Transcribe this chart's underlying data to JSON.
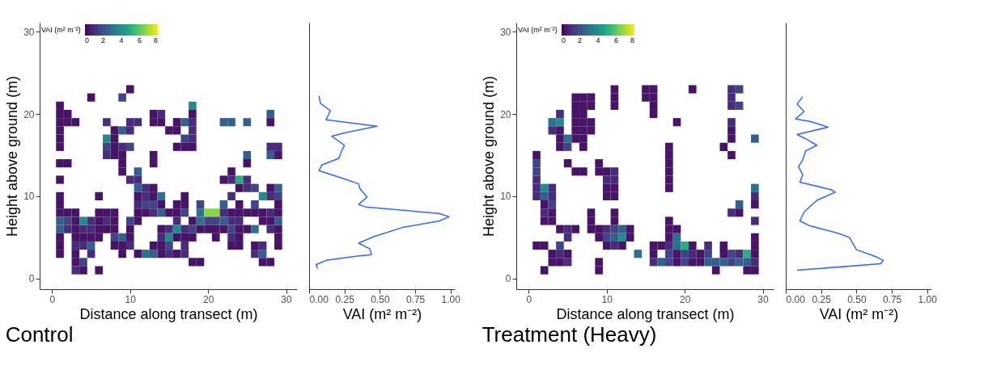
{
  "chart_data": [
    {
      "type": "heatmap",
      "xlabel": "Distance along transect (m)",
      "ylabel": "Height above ground (m)",
      "clabel": "VAI (m² m⁻²)",
      "clim": [
        0,
        8
      ],
      "cticks": [
        0,
        2,
        4,
        6,
        8
      ],
      "annotations": [
        "Control"
      ],
      "xlim": [
        -1.6,
        31.4
      ],
      "xticks": [
        0,
        10,
        20,
        30
      ],
      "ylim": [
        -1.3,
        31.1
      ],
      "yticks": [
        0,
        10,
        20,
        30
      ],
      "x": [
        1,
        2,
        3,
        4,
        5,
        6,
        7,
        8,
        9,
        10,
        11,
        12,
        13,
        14,
        15,
        16,
        17,
        18,
        19,
        20,
        21,
        22,
        23,
        24,
        25,
        26,
        27,
        28,
        29
      ],
      "y": [
        23,
        22,
        21,
        20,
        19,
        18,
        17,
        16,
        15,
        14,
        13,
        12,
        11,
        10,
        9,
        8,
        7,
        6,
        5,
        4,
        3,
        2,
        1
      ],
      "cells": [
        [
          null,
          null,
          null,
          null,
          null,
          null,
          null,
          null,
          null,
          0.4,
          null,
          null,
          null,
          null,
          null,
          null,
          null,
          null,
          null,
          null,
          null,
          null,
          null,
          null,
          null,
          null,
          null,
          null,
          null
        ],
        [
          null,
          null,
          null,
          null,
          0.4,
          null,
          null,
          null,
          1.6,
          null,
          null,
          null,
          null,
          null,
          null,
          null,
          null,
          null,
          null,
          null,
          null,
          null,
          null,
          null,
          null,
          null,
          null,
          null,
          null
        ],
        [
          0.4,
          null,
          null,
          null,
          null,
          null,
          null,
          null,
          null,
          null,
          null,
          null,
          null,
          null,
          null,
          null,
          null,
          3.8,
          null,
          null,
          null,
          null,
          null,
          null,
          null,
          null,
          null,
          null,
          null
        ],
        [
          0.4,
          0.4,
          null,
          null,
          null,
          null,
          null,
          null,
          null,
          null,
          null,
          null,
          0.4,
          1,
          null,
          null,
          null,
          0.4,
          null,
          null,
          null,
          null,
          null,
          null,
          null,
          null,
          null,
          2.4,
          null
        ],
        [
          0.4,
          0.4,
          0.4,
          null,
          null,
          null,
          1,
          null,
          null,
          1,
          1,
          null,
          0.4,
          0.4,
          null,
          0.4,
          2.4,
          1,
          null,
          null,
          null,
          2.4,
          2.4,
          null,
          2.4,
          null,
          null,
          0.4,
          null
        ],
        [
          0.4,
          null,
          null,
          null,
          null,
          null,
          null,
          0.4,
          2.4,
          1,
          null,
          null,
          null,
          null,
          0.4,
          0.4,
          null,
          1,
          null,
          null,
          null,
          null,
          null,
          null,
          null,
          null,
          null,
          null,
          null
        ],
        [
          0.4,
          null,
          null,
          null,
          null,
          null,
          3.8,
          0.4,
          null,
          null,
          null,
          null,
          null,
          null,
          null,
          null,
          1.6,
          1,
          null,
          null,
          null,
          null,
          null,
          null,
          null,
          null,
          null,
          null,
          null
        ],
        [
          0.4,
          null,
          null,
          null,
          null,
          null,
          1.6,
          0.4,
          1,
          1.6,
          null,
          null,
          null,
          null,
          null,
          0.4,
          0.4,
          0.4,
          null,
          null,
          null,
          null,
          null,
          null,
          null,
          null,
          null,
          1,
          1
        ],
        [
          null,
          null,
          null,
          null,
          null,
          null,
          1,
          0.4,
          0.4,
          null,
          null,
          null,
          0.4,
          null,
          null,
          null,
          null,
          null,
          null,
          null,
          null,
          null,
          null,
          null,
          2.4,
          null,
          null,
          2.4,
          0.4
        ],
        [
          0.4,
          0.4,
          null,
          null,
          null,
          null,
          null,
          null,
          0.4,
          null,
          null,
          null,
          0.4,
          null,
          null,
          null,
          null,
          null,
          null,
          null,
          null,
          null,
          null,
          null,
          0.4,
          null,
          null,
          null,
          null
        ],
        [
          null,
          null,
          null,
          null,
          null,
          null,
          null,
          null,
          0.4,
          null,
          2.4,
          null,
          null,
          null,
          null,
          null,
          null,
          null,
          null,
          null,
          null,
          null,
          0.4,
          null,
          null,
          null,
          null,
          null,
          null
        ],
        [
          0.4,
          null,
          null,
          null,
          null,
          null,
          null,
          null,
          null,
          1,
          1,
          null,
          null,
          null,
          null,
          null,
          null,
          null,
          null,
          null,
          null,
          0.4,
          1,
          5,
          1,
          null,
          null,
          null,
          null
        ],
        [
          null,
          null,
          null,
          null,
          null,
          null,
          null,
          null,
          null,
          null,
          2.4,
          1,
          0.4,
          null,
          null,
          null,
          null,
          null,
          null,
          null,
          null,
          null,
          null,
          0.4,
          1,
          1.6,
          null,
          0.4,
          2.4
        ],
        [
          0.4,
          null,
          null,
          null,
          null,
          0.4,
          null,
          null,
          null,
          null,
          0.4,
          1,
          0.4,
          3,
          null,
          null,
          0.4,
          null,
          null,
          null,
          null,
          null,
          1,
          null,
          null,
          null,
          3.8,
          1,
          1.6
        ],
        [
          0.4,
          null,
          null,
          null,
          null,
          null,
          null,
          null,
          null,
          null,
          1,
          1.6,
          1.6,
          0.4,
          null,
          0.4,
          0.4,
          null,
          1.6,
          null,
          null,
          2.4,
          null,
          0.4,
          null,
          1.6,
          null,
          null,
          0.4
        ],
        [
          0.4,
          0.4,
          0.4,
          null,
          null,
          0.4,
          0.4,
          0.4,
          null,
          null,
          0.4,
          0.4,
          1,
          2.4,
          0.4,
          0.4,
          1.6,
          null,
          3,
          6.6,
          6.6,
          1,
          0.4,
          0.4,
          0.4,
          0.4,
          0.4,
          1,
          0.4
        ],
        [
          2.4,
          1.6,
          0.4,
          3.8,
          1,
          0.4,
          1,
          0.4,
          null,
          1.6,
          0.4,
          null,
          null,
          null,
          null,
          1,
          null,
          0.4,
          3,
          1.6,
          1.6,
          2.4,
          1,
          1,
          null,
          null,
          0.4,
          0.4,
          2.4
        ],
        [
          2.4,
          1,
          0.4,
          1,
          1,
          0.4,
          0.4,
          0.4,
          null,
          0.4,
          null,
          null,
          null,
          0.4,
          1,
          3.8,
          1,
          1.6,
          0.4,
          0.4,
          0.4,
          0.4,
          1.6,
          0.4,
          0.4,
          3,
          null,
          1,
          0.4
        ],
        [
          0.4,
          null,
          0.4,
          0.4,
          0.4,
          0.4,
          null,
          1.6,
          2.4,
          0.4,
          null,
          null,
          null,
          1,
          3.8,
          0.4,
          0.4,
          0.4,
          null,
          null,
          0.4,
          null,
          1,
          0.4,
          null,
          null,
          null,
          null,
          0.4
        ],
        [
          0.4,
          null,
          1,
          1,
          2.4,
          null,
          null,
          0.4,
          0.4,
          1,
          null,
          null,
          0.4,
          0.4,
          1.6,
          null,
          1,
          null,
          null,
          null,
          null,
          null,
          0.4,
          0.4,
          null,
          0.4,
          1,
          null,
          0.4
        ],
        [
          0.4,
          null,
          0.4,
          null,
          1,
          null,
          null,
          null,
          0.4,
          null,
          0.4,
          3,
          2.4,
          0.4,
          1,
          0.4,
          1,
          null,
          null,
          null,
          null,
          null,
          null,
          null,
          null,
          1,
          2.4,
          null,
          null
        ],
        [
          null,
          null,
          0.4,
          1.6,
          null,
          null,
          null,
          null,
          null,
          null,
          null,
          null,
          null,
          null,
          null,
          null,
          null,
          0.4,
          0.4,
          null,
          null,
          null,
          null,
          null,
          null,
          null,
          0.4,
          0.4,
          null
        ],
        [
          null,
          null,
          1,
          0.4,
          null,
          0.4,
          null,
          null,
          null,
          null,
          null,
          null,
          null,
          null,
          null,
          null,
          null,
          null,
          null,
          null,
          null,
          null,
          null,
          null,
          null,
          null,
          null,
          null,
          null
        ]
      ]
    },
    {
      "type": "line",
      "xlabel": "VAI (m² m⁻²)",
      "color": "#3366ff",
      "tick_labels": "x",
      "xlim": [
        0,
        1.03
      ],
      "xticks": [
        {
          "value": 0,
          "label": "0.00"
        },
        {
          "value": 0.25,
          "label": "0.25"
        },
        {
          "value": 0.5,
          "label": "0.50"
        },
        {
          "value": 0.75,
          "label": "0.75"
        },
        {
          "value": 1,
          "label": "1.00"
        }
      ],
      "ylim": [
        -1.3,
        31.1
      ],
      "x": [
        0.06,
        0.05,
        0.12,
        0.33,
        0.44,
        0.43,
        0.35,
        0.46,
        0.66,
        0.92,
        0.99,
        0.92,
        0.4,
        0.35,
        0.41,
        0.36,
        0.35,
        0.25,
        0.07,
        0.09,
        0.21,
        0.23,
        0.25,
        0.16,
        0.25,
        0.48,
        0.12,
        0.15,
        0.08,
        0.07
      ],
      "values": [
        1.2,
        1.7,
        2.2,
        2.7,
        2.9,
        3.6,
        4.3,
        5.1,
        6.2,
        7.0,
        7.5,
        7.9,
        8.7,
        9.0,
        9.9,
        10.9,
        11.5,
        12.1,
        13.1,
        13.8,
        14.6,
        15.5,
        16.2,
        17.3,
        17.7,
        18.5,
        19.3,
        20.4,
        21.3,
        22.2
      ]
    },
    {
      "type": "heatmap",
      "xlabel": "Distance along transect (m)",
      "ylabel": "Height above ground (m)",
      "clabel": "VAI (m² m⁻²)",
      "clim": [
        0,
        8
      ],
      "cticks": [
        0,
        2,
        4,
        6,
        8
      ],
      "annotations": [
        "Treatment (Heavy)"
      ],
      "xlim": [
        -1.6,
        31.4
      ],
      "xticks": [
        0,
        10,
        20,
        30
      ],
      "ylim": [
        -1.3,
        31.1
      ],
      "yticks": [
        0,
        10,
        20,
        30
      ],
      "x": [
        1,
        2,
        3,
        4,
        5,
        6,
        7,
        8,
        9,
        10,
        11,
        12,
        13,
        14,
        15,
        16,
        17,
        18,
        19,
        20,
        21,
        22,
        23,
        24,
        25,
        26,
        27,
        28,
        29
      ],
      "y": [
        23,
        22,
        21,
        20,
        19,
        18,
        17,
        16,
        15,
        14,
        13,
        12,
        11,
        10,
        9,
        8,
        7,
        6,
        5,
        4,
        3,
        2,
        1
      ],
      "cells": [
        [
          null,
          null,
          null,
          null,
          null,
          null,
          null,
          null,
          null,
          null,
          0.4,
          null,
          null,
          null,
          0.4,
          0.4,
          null,
          null,
          null,
          null,
          0.4,
          null,
          null,
          null,
          null,
          1,
          1.6,
          null,
          null
        ],
        [
          null,
          null,
          null,
          null,
          null,
          0.4,
          0.4,
          0.4,
          null,
          null,
          0.4,
          null,
          null,
          null,
          0.4,
          0.4,
          null,
          null,
          null,
          null,
          null,
          null,
          null,
          null,
          null,
          1,
          null,
          null,
          null
        ],
        [
          null,
          null,
          null,
          null,
          null,
          0.4,
          0.4,
          0.4,
          null,
          null,
          0.4,
          null,
          null,
          null,
          null,
          0.4,
          null,
          null,
          null,
          null,
          null,
          null,
          null,
          null,
          null,
          1,
          1.6,
          null,
          null
        ],
        [
          null,
          null,
          null,
          1,
          null,
          0.4,
          0.4,
          null,
          null,
          null,
          null,
          null,
          null,
          null,
          null,
          0.4,
          null,
          null,
          null,
          null,
          null,
          null,
          null,
          null,
          null,
          null,
          null,
          null,
          null
        ],
        [
          null,
          null,
          3,
          3.8,
          null,
          0.4,
          0.4,
          0.4,
          null,
          null,
          null,
          null,
          null,
          null,
          null,
          null,
          null,
          null,
          0.4,
          null,
          null,
          null,
          null,
          null,
          null,
          1,
          null,
          null,
          null
        ],
        [
          null,
          null,
          1,
          0.4,
          null,
          0.4,
          0.4,
          0.4,
          null,
          null,
          null,
          null,
          null,
          null,
          null,
          null,
          null,
          null,
          null,
          null,
          null,
          null,
          null,
          null,
          null,
          0.4,
          null,
          null,
          null
        ],
        [
          null,
          null,
          null,
          0.4,
          3,
          0.4,
          0.4,
          null,
          null,
          null,
          null,
          null,
          null,
          null,
          null,
          null,
          null,
          null,
          null,
          null,
          null,
          null,
          null,
          null,
          null,
          0.4,
          null,
          null,
          2.4
        ],
        [
          null,
          null,
          null,
          0.4,
          1.6,
          null,
          0.4,
          null,
          null,
          null,
          null,
          null,
          null,
          null,
          null,
          null,
          null,
          0.4,
          null,
          null,
          null,
          null,
          null,
          null,
          0.4,
          null,
          null,
          null,
          null
        ],
        [
          0.4,
          null,
          null,
          null,
          null,
          null,
          null,
          null,
          null,
          null,
          null,
          null,
          null,
          null,
          null,
          null,
          null,
          0.4,
          null,
          null,
          null,
          null,
          null,
          null,
          null,
          0.4,
          null,
          null,
          null
        ],
        [
          1.6,
          null,
          null,
          null,
          0.4,
          null,
          null,
          null,
          0.4,
          null,
          null,
          null,
          null,
          null,
          null,
          null,
          null,
          0.4,
          null,
          null,
          null,
          null,
          null,
          null,
          null,
          null,
          null,
          null,
          null
        ],
        [
          1.6,
          null,
          null,
          null,
          null,
          0.4,
          0.4,
          null,
          0.4,
          0.4,
          1,
          null,
          null,
          null,
          null,
          null,
          null,
          0.4,
          null,
          null,
          null,
          null,
          null,
          null,
          null,
          null,
          null,
          null,
          null
        ],
        [
          1,
          null,
          null,
          null,
          null,
          null,
          null,
          null,
          null,
          1,
          1,
          null,
          null,
          null,
          null,
          null,
          null,
          0.4,
          null,
          null,
          null,
          null,
          null,
          null,
          null,
          null,
          null,
          null,
          null
        ],
        [
          1,
          3.8,
          1,
          null,
          null,
          null,
          null,
          null,
          null,
          0.4,
          0.4,
          null,
          null,
          null,
          null,
          null,
          null,
          0.4,
          null,
          null,
          null,
          null,
          null,
          null,
          null,
          null,
          null,
          null,
          3
        ],
        [
          1,
          2.4,
          1,
          null,
          null,
          null,
          null,
          null,
          null,
          0.4,
          0.4,
          null,
          null,
          null,
          null,
          null,
          null,
          null,
          null,
          null,
          null,
          null,
          null,
          null,
          null,
          null,
          null,
          null,
          1
        ],
        [
          null,
          0.4,
          1.6,
          null,
          null,
          null,
          null,
          null,
          null,
          null,
          null,
          null,
          null,
          null,
          null,
          null,
          null,
          null,
          null,
          null,
          null,
          null,
          null,
          null,
          null,
          null,
          2.4,
          null,
          0.4
        ],
        [
          null,
          1,
          0.4,
          null,
          null,
          null,
          null,
          0.4,
          null,
          null,
          0.4,
          null,
          null,
          null,
          null,
          null,
          null,
          null,
          null,
          null,
          null,
          null,
          null,
          null,
          null,
          1,
          0.4,
          null,
          null
        ],
        [
          null,
          0.4,
          0.4,
          null,
          null,
          null,
          null,
          0.4,
          null,
          null,
          0.4,
          null,
          null,
          null,
          null,
          null,
          null,
          0.4,
          null,
          null,
          null,
          null,
          null,
          null,
          null,
          null,
          null,
          null,
          1
        ],
        [
          null,
          null,
          null,
          0.4,
          1,
          0.4,
          null,
          0.4,
          0.4,
          1,
          1.6,
          2.4,
          0.4,
          null,
          null,
          null,
          null,
          0.4,
          0.4,
          null,
          null,
          null,
          null,
          null,
          null,
          null,
          null,
          null,
          null
        ],
        [
          null,
          null,
          null,
          null,
          1,
          null,
          null,
          null,
          0.4,
          1.6,
          2.4,
          3.8,
          0.4,
          null,
          null,
          null,
          null,
          0.4,
          3,
          null,
          null,
          null,
          null,
          null,
          null,
          null,
          null,
          null,
          0.4
        ],
        [
          0.4,
          0.4,
          null,
          1.6,
          null,
          null,
          null,
          null,
          null,
          0.4,
          1,
          0.4,
          null,
          null,
          null,
          0.4,
          0.4,
          1,
          3,
          5,
          0.4,
          null,
          1,
          null,
          0.4,
          null,
          null,
          null,
          0.4
        ],
        [
          null,
          null,
          0.4,
          1,
          0.4,
          null,
          null,
          null,
          null,
          null,
          null,
          null,
          null,
          3,
          null,
          0.4,
          null,
          1.6,
          0.4,
          1.6,
          1,
          0.4,
          1.6,
          null,
          0.4,
          1.6,
          1,
          5,
          0.4
        ],
        [
          null,
          null,
          0.4,
          0.4,
          1,
          null,
          null,
          null,
          0.4,
          null,
          null,
          null,
          null,
          null,
          null,
          1,
          2.4,
          1.6,
          0.4,
          1.6,
          0.4,
          0.4,
          2.4,
          2.4,
          2.4,
          1.6,
          2.4,
          2.4,
          1
        ],
        [
          null,
          0.4,
          null,
          null,
          null,
          null,
          null,
          null,
          0.4,
          null,
          null,
          null,
          null,
          null,
          null,
          null,
          null,
          null,
          null,
          null,
          null,
          null,
          null,
          0.4,
          null,
          null,
          null,
          0.4,
          0.4
        ]
      ]
    },
    {
      "type": "line",
      "xlabel": "VAI (m² m⁻²)",
      "color": "#3366ff",
      "tick_labels": "x",
      "xlim": [
        0,
        1.03
      ],
      "xticks": [
        {
          "value": 0,
          "label": "0.00"
        },
        {
          "value": 0.25,
          "label": "0.25"
        },
        {
          "value": 0.5,
          "label": "0.50"
        },
        {
          "value": 0.75,
          "label": "0.75"
        },
        {
          "value": 1,
          "label": "1.00"
        }
      ],
      "ylim": [
        -1.3,
        31.1
      ],
      "x": [
        0.08,
        0.67,
        0.69,
        0.63,
        0.5,
        0.47,
        0.45,
        0.37,
        0.17,
        0.1,
        0.13,
        0.22,
        0.35,
        0.32,
        0.1,
        0.12,
        0.09,
        0.12,
        0.14,
        0.22,
        0.15,
        0.08,
        0.3,
        0.17,
        0.07,
        0.13,
        0.08,
        0.12
      ],
      "values": [
        1.0,
        1.8,
        2.2,
        2.7,
        3.5,
        4.4,
        5.0,
        5.5,
        6.4,
        7.0,
        8.1,
        9.5,
        10.5,
        10.8,
        11.7,
        12.6,
        13.6,
        14.4,
        15.5,
        16.2,
        16.9,
        17.5,
        18.4,
        19.1,
        19.4,
        20.3,
        21.2,
        22.1
      ]
    }
  ]
}
